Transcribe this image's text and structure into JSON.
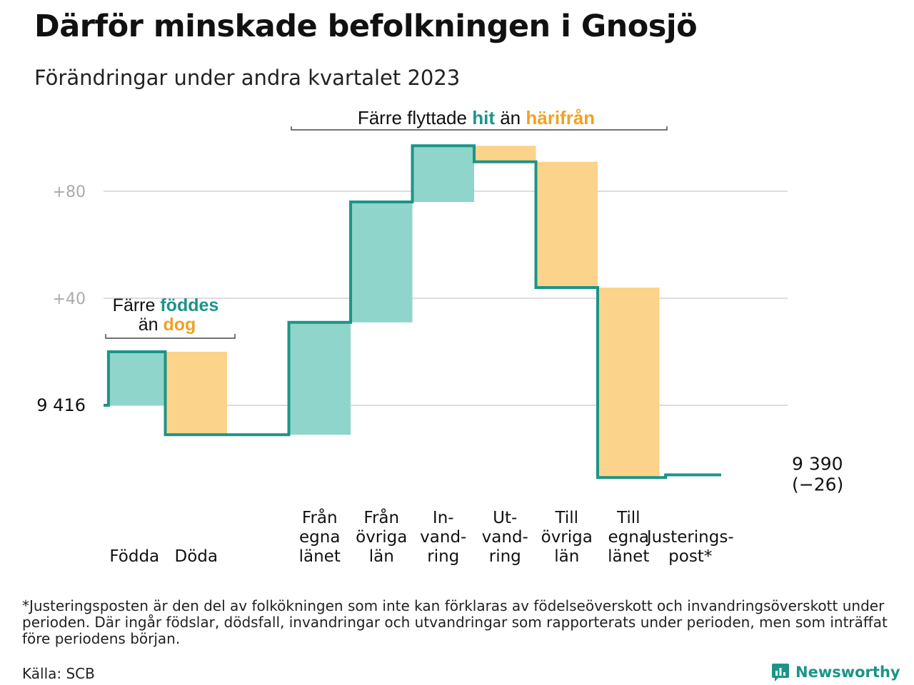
{
  "title": "Därför minskade befolkningen i Gnosjö",
  "subtitle": "Förändringar under andra kvartalet 2023",
  "colors": {
    "inflow": "#8fd5cb",
    "outflow": "#fcd38a",
    "line": "#1c9488",
    "hit_text": "#1c9488",
    "harifran_text": "#f0a224",
    "grid": "#dddddd",
    "tick_text": "#aaaaaa"
  },
  "annotations": {
    "birth_death": {
      "line1_prefix": "Färre",
      "line1_highlight": "föddes",
      "line2_prefix": "än",
      "line2_highlight": "dog"
    },
    "migration": {
      "prefix": "Färre flyttade",
      "highlight1": "hit",
      "middle": "än",
      "highlight2": "härifrån"
    }
  },
  "chart_data": {
    "type": "waterfall",
    "start_label": "9  416",
    "end_label_line1": "9 390",
    "end_label_line2": "(−26)",
    "start_value": 9416,
    "end_value": 9390,
    "y_ticks": [
      {
        "label": "+80",
        "value": 80
      },
      {
        "label": "+40",
        "value": 40
      }
    ],
    "ylim": [
      -38,
      102
    ],
    "steps": [
      {
        "label_lines": [
          "Födda"
        ],
        "delta": 20,
        "kind": "in"
      },
      {
        "label_lines": [
          "Döda"
        ],
        "delta": -31,
        "kind": "out"
      },
      {
        "label_lines": [
          ""
        ],
        "delta": 0,
        "kind": "gap"
      },
      {
        "label_lines": [
          "Från",
          "egna",
          "länet"
        ],
        "delta": 42,
        "kind": "in"
      },
      {
        "label_lines": [
          "Från",
          "övriga",
          "län"
        ],
        "delta": 45,
        "kind": "in"
      },
      {
        "label_lines": [
          "In-",
          "vand-",
          "ring"
        ],
        "delta": 21,
        "kind": "in"
      },
      {
        "label_lines": [
          "Ut-",
          "vand-",
          "ring"
        ],
        "delta": -6,
        "kind": "out"
      },
      {
        "label_lines": [
          "Till",
          "övriga",
          "län"
        ],
        "delta": -47,
        "kind": "out"
      },
      {
        "label_lines": [
          "Till",
          "egna",
          "länet"
        ],
        "delta": -71,
        "kind": "out"
      },
      {
        "label_lines": [
          "Justerings-",
          "post*"
        ],
        "delta": 1,
        "kind": "adjust"
      }
    ]
  },
  "footnote": "*Justeringsposten är den del av folkökningen som inte kan förklaras av födelseöverskott och invandringsöverskott under perioden. Där ingår födslar, dödsfall, invandringar och utvandringar som rapporterats under perioden, men som inträffat före periodens början.",
  "source": "Källa: SCB",
  "brand": "Newsworthy",
  "brand_icon": "newsworthy-logo-icon"
}
